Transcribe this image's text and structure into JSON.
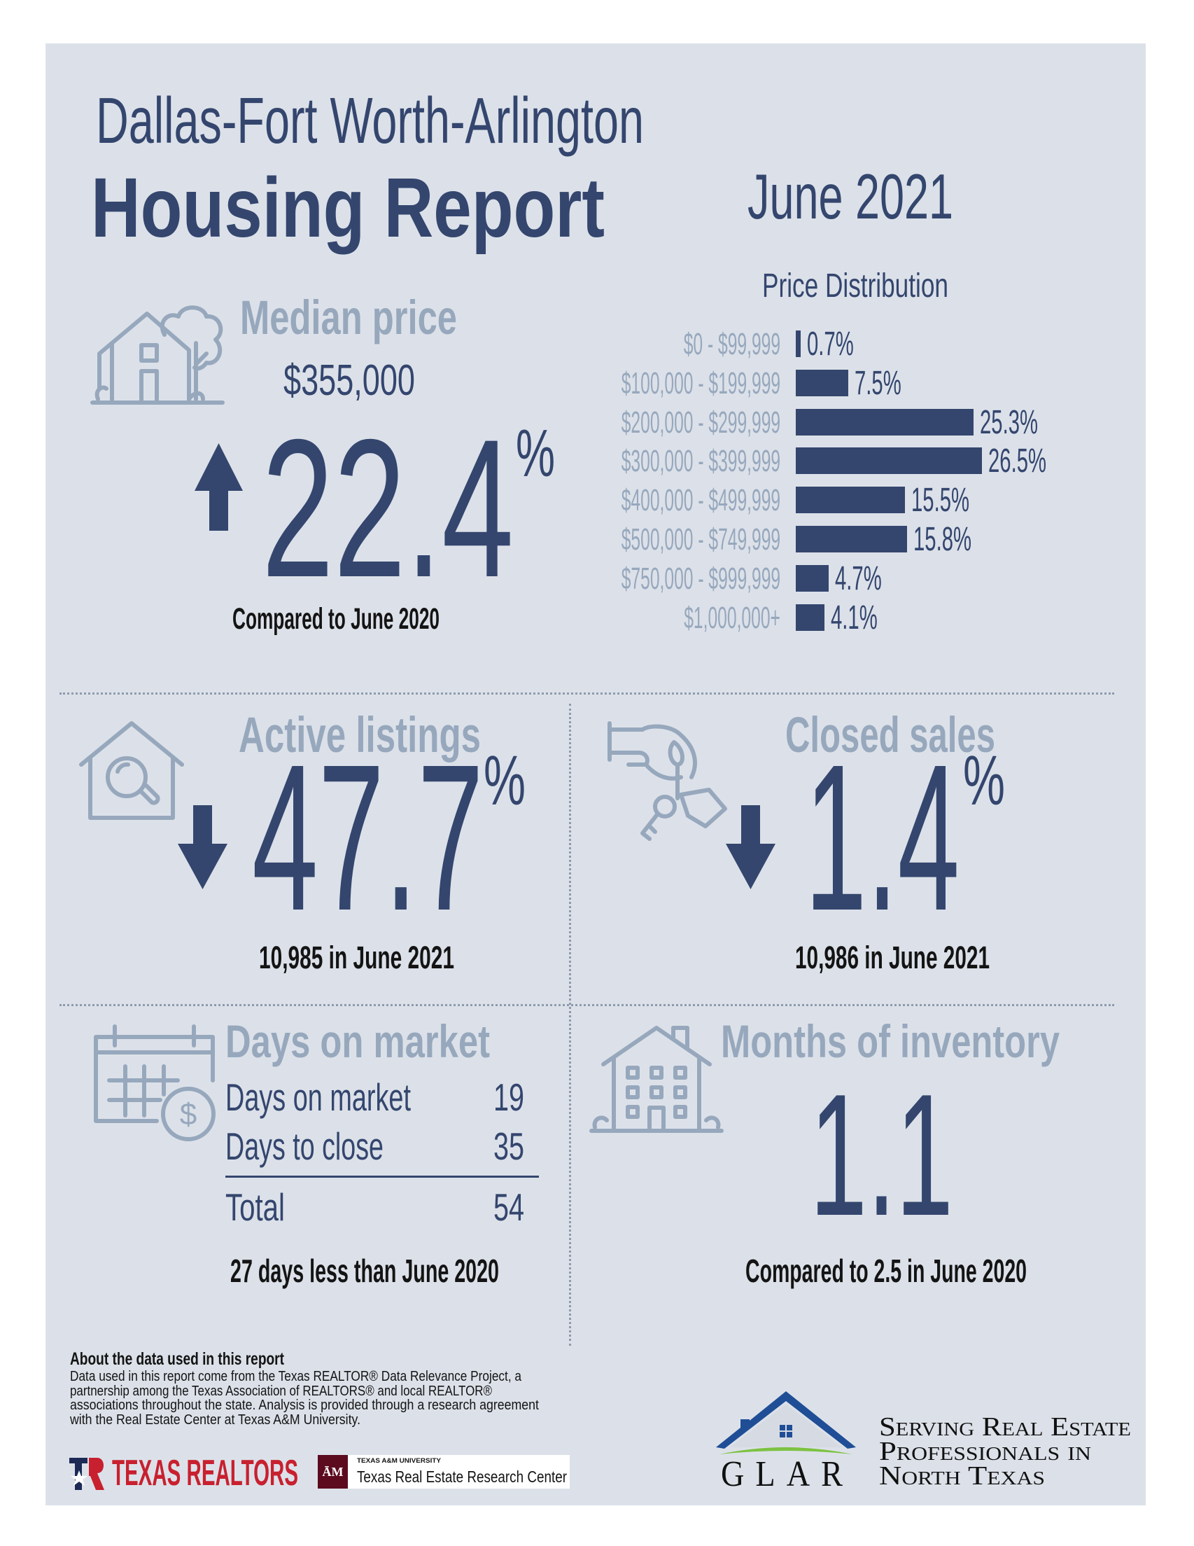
{
  "header": {
    "region": "Dallas-Fort Worth-Arlington",
    "title": "Housing Report",
    "period": "June 2021"
  },
  "colors": {
    "navy": "#34466e",
    "light_blue_gray": "#97a8bd",
    "background": "#dce1e9",
    "texas_realtors_red": "#c8202f",
    "glar_green": "#7dc242",
    "glar_blue": "#1f4e96"
  },
  "median_price": {
    "label": "Median price",
    "value": "$355,000",
    "change_direction": "up",
    "change": "22.4",
    "unit": "%",
    "comparison": "Compared to June 2020",
    "icon": "house-with-tree-icon"
  },
  "active_listings": {
    "label": "Active listings",
    "change_direction": "down",
    "change": "47.7",
    "unit": "%",
    "detail": "10,985 in June 2021",
    "icon": "house-magnifier-icon"
  },
  "closed_sales": {
    "label": "Closed sales",
    "change_direction": "down",
    "change": "1.4",
    "unit": "%",
    "detail": "10,986 in June 2021",
    "icon": "hand-with-keys-icon"
  },
  "days_on_market": {
    "label": "Days on market",
    "rows": [
      {
        "label": "Days on market",
        "value": "19"
      },
      {
        "label": "Days to close",
        "value": "35"
      }
    ],
    "total": {
      "label": "Total",
      "value": "54"
    },
    "comparison": "27 days less than June 2020",
    "icon": "calendar-dollar-icon"
  },
  "months_of_inventory": {
    "label": "Months of inventory",
    "value": "1.1",
    "comparison": "Compared to 2.5 in June 2020",
    "icon": "apartment-building-icon"
  },
  "chart_data": {
    "type": "bar",
    "orientation": "horizontal",
    "title": "Price Distribution",
    "categories": [
      "$0 - $99,999",
      "$100,000 - $199,999",
      "$200,000 - $299,999",
      "$300,000 - $399,999",
      "$400,000 - $499,999",
      "$500,000 - $749,999",
      "$750,000 - $999,999",
      "$1,000,000+"
    ],
    "values": [
      0.7,
      7.5,
      25.3,
      26.5,
      15.5,
      15.8,
      4.7,
      4.1
    ],
    "value_labels": [
      "0.7%",
      "7.5%",
      "25.3%",
      "26.5%",
      "15.5%",
      "15.8%",
      "4.7%",
      "4.1%"
    ],
    "unit": "%",
    "bar_color": "#34466e",
    "grid": false
  },
  "footer": {
    "about_title": "About the data used in this report",
    "about_lines": [
      "Data used in this report come from the Texas REALTOR® Data Relevance Project, a",
      "partnership among the Texas Association of REALTORS® and local REALTOR®",
      "associations throughout the state. Analysis is provided through a research agreement",
      "with the Real Estate Center at Texas A&M University."
    ],
    "texas_realtors_logo": "TEXAS REALTORS",
    "tamu_small": "TEXAS A&M UNIVERSITY",
    "tamu_center": "Texas Real Estate Research Center",
    "glar_logo": "GLAR",
    "glar_tagline": [
      "Serving Real Estate",
      "Professionals in",
      "North Texas"
    ]
  }
}
